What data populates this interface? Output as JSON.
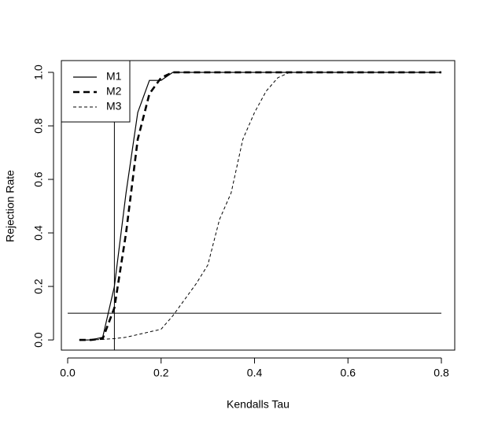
{
  "chart_data": {
    "type": "line",
    "x_label": "Kendalls Tau",
    "y_label": "Rejection Rate",
    "x": [
      0.025,
      0.05,
      0.075,
      0.1,
      0.125,
      0.15,
      0.175,
      0.2,
      0.225,
      0.25,
      0.275,
      0.3,
      0.325,
      0.35,
      0.375,
      0.4,
      0.425,
      0.45,
      0.475,
      0.5,
      0.525,
      0.55,
      0.575,
      0.6,
      0.625,
      0.65,
      0.675,
      0.7,
      0.725,
      0.75,
      0.775,
      0.8
    ],
    "series": [
      {
        "name": "M1",
        "color": "#000000",
        "line_style": "solid",
        "values": [
          0,
          0,
          0.01,
          0.2,
          0.55,
          0.85,
          0.97,
          0.97,
          1,
          1,
          1,
          1,
          1,
          1,
          1,
          1,
          1,
          1,
          1,
          1,
          1,
          1,
          1,
          1,
          1,
          1,
          1,
          1,
          1,
          1,
          1,
          1
        ]
      },
      {
        "name": "M2",
        "color": "#000000",
        "line_style": "thick-dashed",
        "values": [
          0,
          0,
          0.005,
          0.12,
          0.4,
          0.75,
          0.92,
          0.98,
          1,
          1,
          1,
          1,
          1,
          1,
          1,
          1,
          1,
          1,
          1,
          1,
          1,
          1,
          1,
          1,
          1,
          1,
          1,
          1,
          1,
          1,
          1,
          1
        ]
      },
      {
        "name": "M3",
        "color": "#000000",
        "line_style": "dashed",
        "values": [
          0,
          0,
          0.002,
          0.005,
          0.01,
          0.02,
          0.03,
          0.04,
          0.09,
          0.15,
          0.21,
          0.28,
          0.45,
          0.55,
          0.75,
          0.85,
          0.93,
          0.98,
          1,
          1,
          1,
          1,
          1,
          1,
          1,
          1,
          1,
          1,
          1,
          1,
          1,
          1
        ]
      }
    ],
    "hline": {
      "y": 0.1,
      "x": [
        0,
        0.8
      ]
    },
    "vline": 0.1,
    "xlim": [
      -0.0135,
      0.8286
    ],
    "ylim": [
      -0.038,
      1.044
    ],
    "xticks": [
      {
        "value": 0,
        "label": "0.0"
      },
      {
        "value": 0.2,
        "label": "0.2"
      },
      {
        "value": 0.4,
        "label": "0.4"
      },
      {
        "value": 0.6,
        "label": "0.6"
      },
      {
        "value": 0.8,
        "label": "0.8"
      }
    ],
    "yticks": [
      {
        "value": 0,
        "label": "0.0"
      },
      {
        "value": 0.2,
        "label": "0.2"
      },
      {
        "value": 0.4,
        "label": "0.4"
      },
      {
        "value": 0.6,
        "label": "0.6"
      },
      {
        "value": 0.8,
        "label": "0.8"
      },
      {
        "value": 1,
        "label": "1.0"
      }
    ],
    "legend": "top-left"
  }
}
